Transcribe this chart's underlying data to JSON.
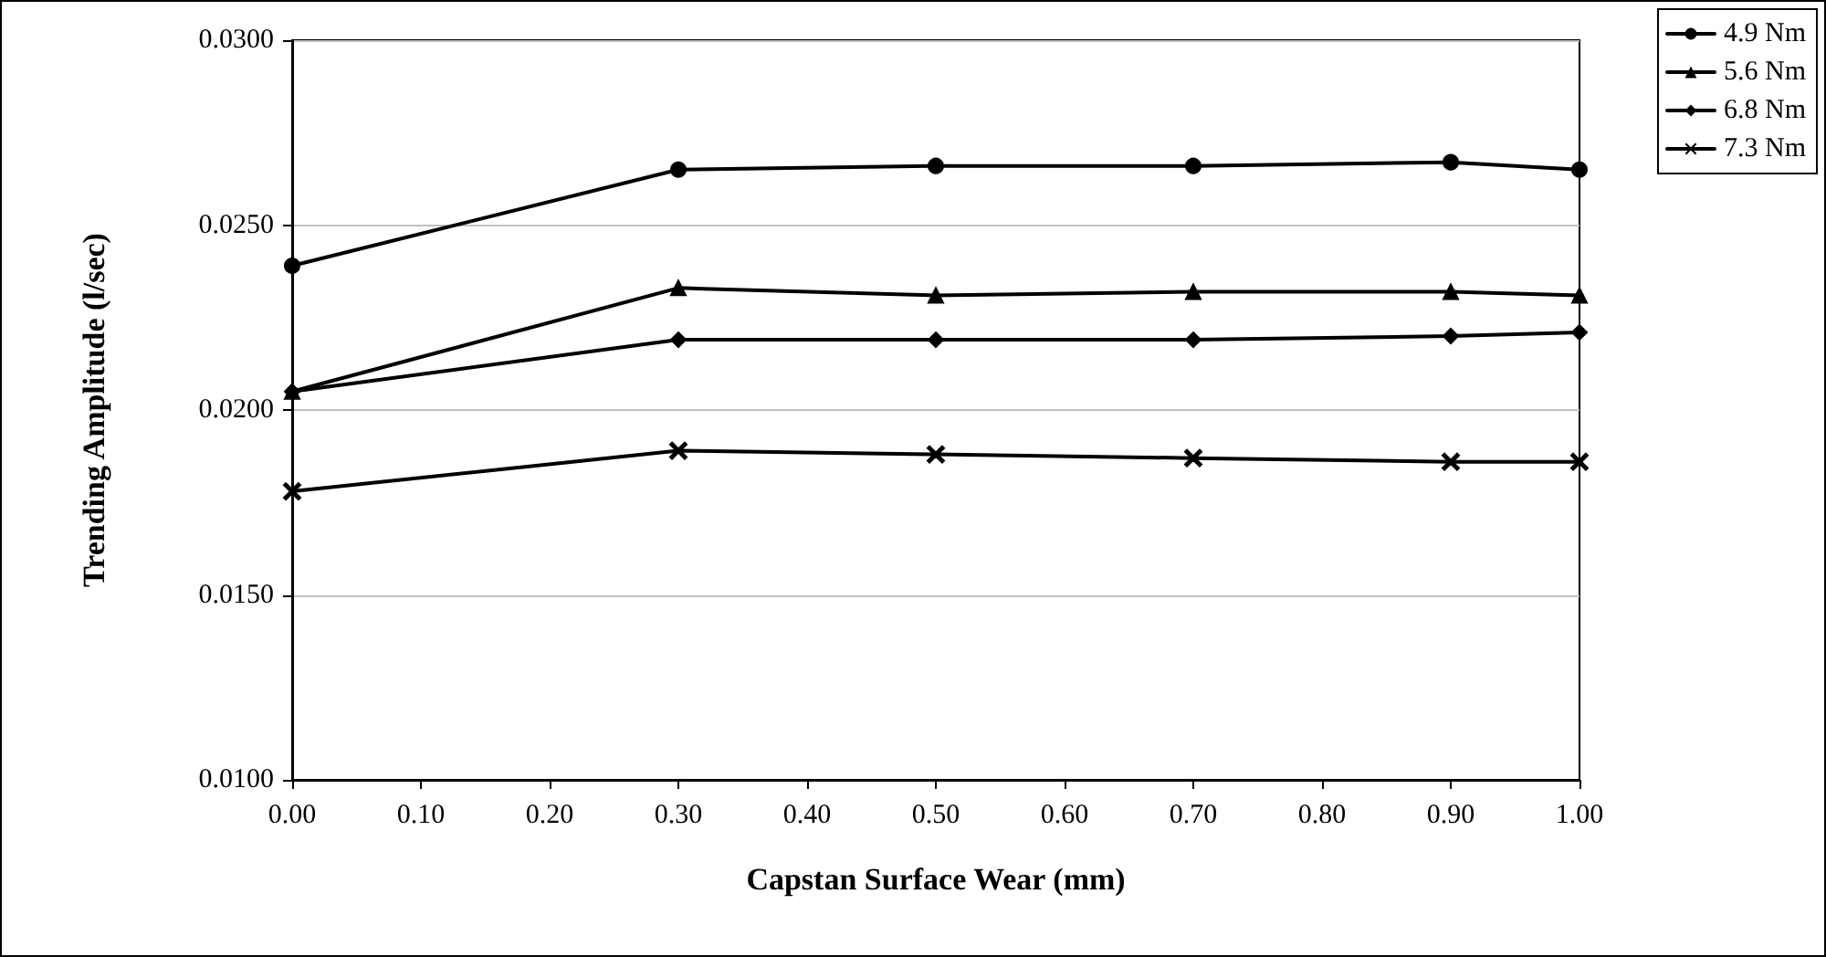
{
  "chart_data": {
    "type": "line",
    "xlabel": "Capstan Surface Wear (mm)",
    "ylabel": "Trending Amplitude (l/sec)",
    "x": [
      0,
      0.3,
      0.5,
      0.7,
      0.9,
      1.0
    ],
    "series": [
      {
        "name": "4.9 Nm",
        "color": "#000000",
        "marker": "circle",
        "values": [
          0.0239,
          0.0265,
          0.0266,
          0.0266,
          0.0267,
          0.0265
        ]
      },
      {
        "name": "5.6 Nm",
        "color": "#000000",
        "marker": "triangle",
        "values": [
          0.0205,
          0.0233,
          0.0231,
          0.0232,
          0.0232,
          0.0231
        ]
      },
      {
        "name": "6.8 Nm",
        "color": "#000000",
        "marker": "diamond",
        "values": [
          0.0205,
          0.0219,
          0.0219,
          0.0219,
          0.022,
          0.0221
        ]
      },
      {
        "name": "7.3 Nm",
        "color": "#000000",
        "marker": "cross",
        "values": [
          0.0178,
          0.0189,
          0.0188,
          0.0187,
          0.0186,
          0.0186
        ]
      }
    ],
    "xlim": [
      0,
      1
    ],
    "xticks": [
      {
        "value": 0,
        "label": "0.00"
      },
      {
        "value": 0.1,
        "label": "0.10"
      },
      {
        "value": 0.2,
        "label": "0.20"
      },
      {
        "value": 0.3,
        "label": "0.30"
      },
      {
        "value": 0.4,
        "label": "0.40"
      },
      {
        "value": 0.5,
        "label": "0.50"
      },
      {
        "value": 0.6,
        "label": "0.60"
      },
      {
        "value": 0.7,
        "label": "0.70"
      },
      {
        "value": 0.8,
        "label": "0.80"
      },
      {
        "value": 0.9,
        "label": "0.90"
      },
      {
        "value": 1.0,
        "label": "1.00"
      }
    ],
    "ylim": [
      0.01,
      0.03
    ],
    "yticks": [
      {
        "value": 0.01,
        "label": "0.0100"
      },
      {
        "value": 0.015,
        "label": "0.0150"
      },
      {
        "value": 0.02,
        "label": "0.0200"
      },
      {
        "value": 0.025,
        "label": "0.0250"
      },
      {
        "value": 0.03,
        "label": "0.0300"
      }
    ],
    "grid": "y",
    "legend": "top right",
    "line_style": "solid"
  }
}
